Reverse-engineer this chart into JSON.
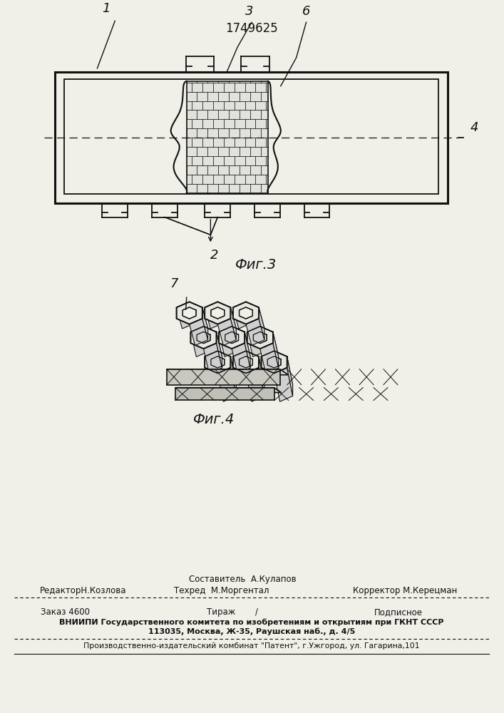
{
  "patent_number": "1749625",
  "fig3_label": "Фиг.3",
  "fig4_label": "Фиг.4",
  "label_1": "1",
  "label_2": "2",
  "label_3": "3",
  "label_4": "4",
  "label_6b": "6",
  "label_7": "7",
  "editor_line": "РедакторН.Козлова",
  "compiler_label": "Составитель  А.Кулапов",
  "techred_label": "Техред  М.Моргентал",
  "corrector_label": "Корректор М.Керецман",
  "order_label": "Заказ 4600",
  "tirazh_label": "Тираж",
  "tirazh_slash": "/",
  "podpisnoe_label": "Подписное",
  "vniipи_line": "ВНИИПИ Государственного комитета по изобретениям и открытиям при ГКНТ СССР",
  "address_line": "113035, Москва, Ж-35, Раушская наб., д. 4/5",
  "kombinat_line": "Производственно-издательский комбинат \"Патент\", г.Ужгород, ул. Гагарина,101",
  "bg_color": "#f0efe8",
  "line_color": "#111111",
  "text_color": "#111111"
}
